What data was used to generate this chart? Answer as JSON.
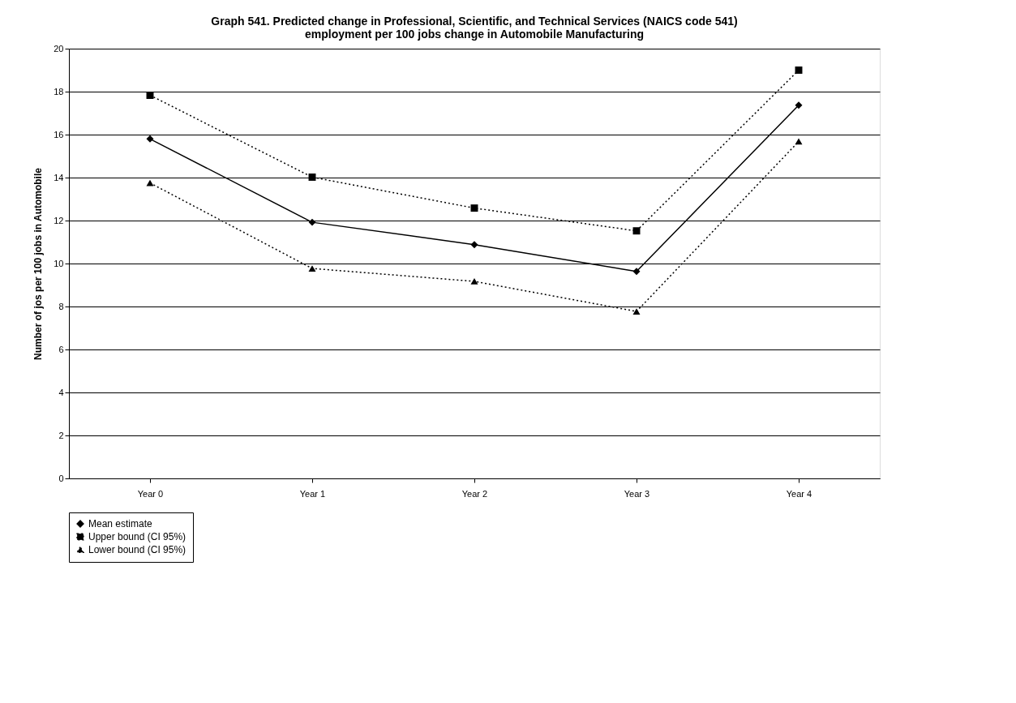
{
  "chart_data": {
    "type": "line",
    "title": "Graph 541.  Predicted change in Professional, Scientific, and Technical Services (NAICS code 541) employment per 100 jobs change in Automobile Manufacturing",
    "ylabel": "Number of jos per 100 jobs in Automobile",
    "categories": [
      "Year 0",
      "Year 1",
      "Year 2",
      "Year 3",
      "Year 4"
    ],
    "series": [
      {
        "name": "Mean estimate",
        "color": "#000000",
        "marker": "diamond",
        "line_style": "solid",
        "values": [
          15.8,
          11.92,
          10.88,
          9.63,
          17.37
        ]
      },
      {
        "name": "Upper bound (CI 95%)",
        "color": "#000000",
        "marker": "square",
        "line_style": "dotted",
        "values": [
          17.83,
          14.02,
          12.58,
          11.52,
          19.0
        ]
      },
      {
        "name": "Lower bound (CI 95%)",
        "color": "#000000",
        "marker": "triangle",
        "line_style": "dotted",
        "values": [
          13.75,
          9.77,
          9.17,
          7.77,
          15.68
        ]
      }
    ],
    "ylim": [
      0,
      20
    ],
    "yticks": [
      0,
      2,
      4,
      6,
      8,
      10,
      12,
      14,
      16,
      18,
      20
    ],
    "grid": "y",
    "legend": "bottom"
  }
}
